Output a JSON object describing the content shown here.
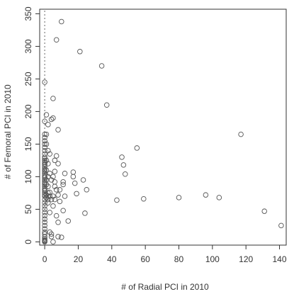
{
  "chart_data": {
    "type": "scatter",
    "xlabel": "# of Radial PCI in 2010",
    "ylabel": "# of Femoral PCI in 2010",
    "xlim": [
      -3,
      144
    ],
    "ylim": [
      -5,
      357
    ],
    "xticks": [
      0,
      20,
      40,
      60,
      80,
      100,
      120,
      140
    ],
    "yticks": [
      0,
      50,
      100,
      150,
      200,
      250,
      300,
      350
    ],
    "grid": false,
    "reference_line_x": 0,
    "points": [
      [
        0,
        0
      ],
      [
        0,
        1
      ],
      [
        0,
        2
      ],
      [
        0,
        3
      ],
      [
        0,
        5
      ],
      [
        0,
        8
      ],
      [
        0,
        12
      ],
      [
        0,
        15
      ],
      [
        0,
        20
      ],
      [
        0,
        25
      ],
      [
        0,
        30
      ],
      [
        0,
        35
      ],
      [
        0,
        40
      ],
      [
        0,
        45
      ],
      [
        0,
        50
      ],
      [
        0,
        55
      ],
      [
        0,
        60
      ],
      [
        0,
        65
      ],
      [
        0,
        70
      ],
      [
        0,
        72
      ],
      [
        0,
        75
      ],
      [
        0,
        78
      ],
      [
        0,
        80
      ],
      [
        0,
        82
      ],
      [
        0,
        85
      ],
      [
        0,
        88
      ],
      [
        0,
        90
      ],
      [
        0,
        92
      ],
      [
        0,
        95
      ],
      [
        0,
        98
      ],
      [
        0,
        100
      ],
      [
        0,
        102
      ],
      [
        0,
        105
      ],
      [
        0,
        108
      ],
      [
        0,
        110
      ],
      [
        0,
        112
      ],
      [
        0,
        115
      ],
      [
        0,
        118
      ],
      [
        0,
        120
      ],
      [
        0,
        122
      ],
      [
        0,
        125
      ],
      [
        0,
        128
      ],
      [
        0,
        130
      ],
      [
        0,
        135
      ],
      [
        0,
        140
      ],
      [
        0,
        145
      ],
      [
        0,
        150
      ],
      [
        0,
        155
      ],
      [
        0,
        160
      ],
      [
        0,
        165
      ],
      [
        0,
        185
      ],
      [
        0,
        245
      ],
      [
        1,
        68
      ],
      [
        1,
        72
      ],
      [
        1,
        88
      ],
      [
        1,
        95
      ],
      [
        1,
        110
      ],
      [
        1,
        125
      ],
      [
        1,
        150
      ],
      [
        1,
        165
      ],
      [
        1,
        195
      ],
      [
        2,
        60
      ],
      [
        2,
        65
      ],
      [
        2,
        70
      ],
      [
        2,
        75
      ],
      [
        2,
        85
      ],
      [
        2,
        100
      ],
      [
        2,
        120
      ],
      [
        2,
        140
      ],
      [
        2,
        180
      ],
      [
        3,
        15
      ],
      [
        3,
        45
      ],
      [
        3,
        70
      ],
      [
        3,
        76
      ],
      [
        3,
        105
      ],
      [
        3,
        135
      ],
      [
        4,
        8
      ],
      [
        4,
        12
      ],
      [
        4,
        65
      ],
      [
        4,
        95
      ],
      [
        4,
        188
      ],
      [
        5,
        0
      ],
      [
        5,
        55
      ],
      [
        5,
        70
      ],
      [
        5,
        100
      ],
      [
        5,
        190
      ],
      [
        5,
        220
      ],
      [
        6,
        65
      ],
      [
        6,
        85
      ],
      [
        6,
        92
      ],
      [
        6,
        108
      ],
      [
        6,
        125
      ],
      [
        7,
        40
      ],
      [
        7,
        80
      ],
      [
        7,
        132
      ],
      [
        7,
        310
      ],
      [
        8,
        8
      ],
      [
        8,
        30
      ],
      [
        8,
        72
      ],
      [
        8,
        120
      ],
      [
        8,
        172
      ],
      [
        9,
        62
      ],
      [
        9,
        80
      ],
      [
        10,
        7
      ],
      [
        10,
        338
      ],
      [
        11,
        48
      ],
      [
        11,
        88
      ],
      [
        11,
        92
      ],
      [
        12,
        70
      ],
      [
        12,
        105
      ],
      [
        14,
        32
      ],
      [
        17,
        100
      ],
      [
        17,
        107
      ],
      [
        18,
        90
      ],
      [
        19,
        74
      ],
      [
        21,
        292
      ],
      [
        23,
        95
      ],
      [
        24,
        44
      ],
      [
        25,
        80
      ],
      [
        34,
        270
      ],
      [
        37,
        210
      ],
      [
        43,
        64
      ],
      [
        46,
        130
      ],
      [
        47,
        118
      ],
      [
        48,
        104
      ],
      [
        55,
        144
      ],
      [
        59,
        66
      ],
      [
        80,
        68
      ],
      [
        96,
        72
      ],
      [
        104,
        68
      ],
      [
        117,
        165
      ],
      [
        131,
        47
      ],
      [
        141,
        25
      ]
    ]
  }
}
